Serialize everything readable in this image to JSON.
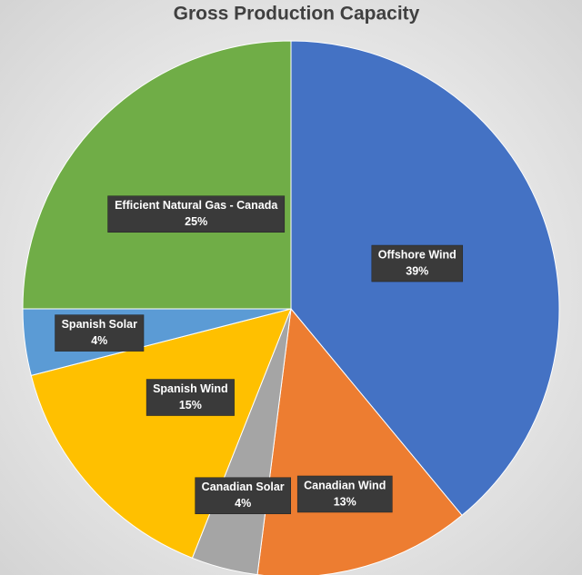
{
  "chart_data": {
    "type": "pie",
    "title": "Gross Production Capacity",
    "categories": [
      "Offshore Wind",
      "Canadian Wind",
      "Canadian Solar",
      "Spanish Wind",
      "Spanish Solar",
      "Efficient Natural Gas - Canada"
    ],
    "values": [
      39,
      13,
      4,
      15,
      4,
      25
    ],
    "value_labels": [
      "39%",
      "13%",
      "4%",
      "15%",
      "4%",
      "25%"
    ],
    "colors": [
      "#4472c4",
      "#ed7d31",
      "#a5a5a5",
      "#ffc000",
      "#5b9bd5",
      "#70ad47"
    ]
  }
}
